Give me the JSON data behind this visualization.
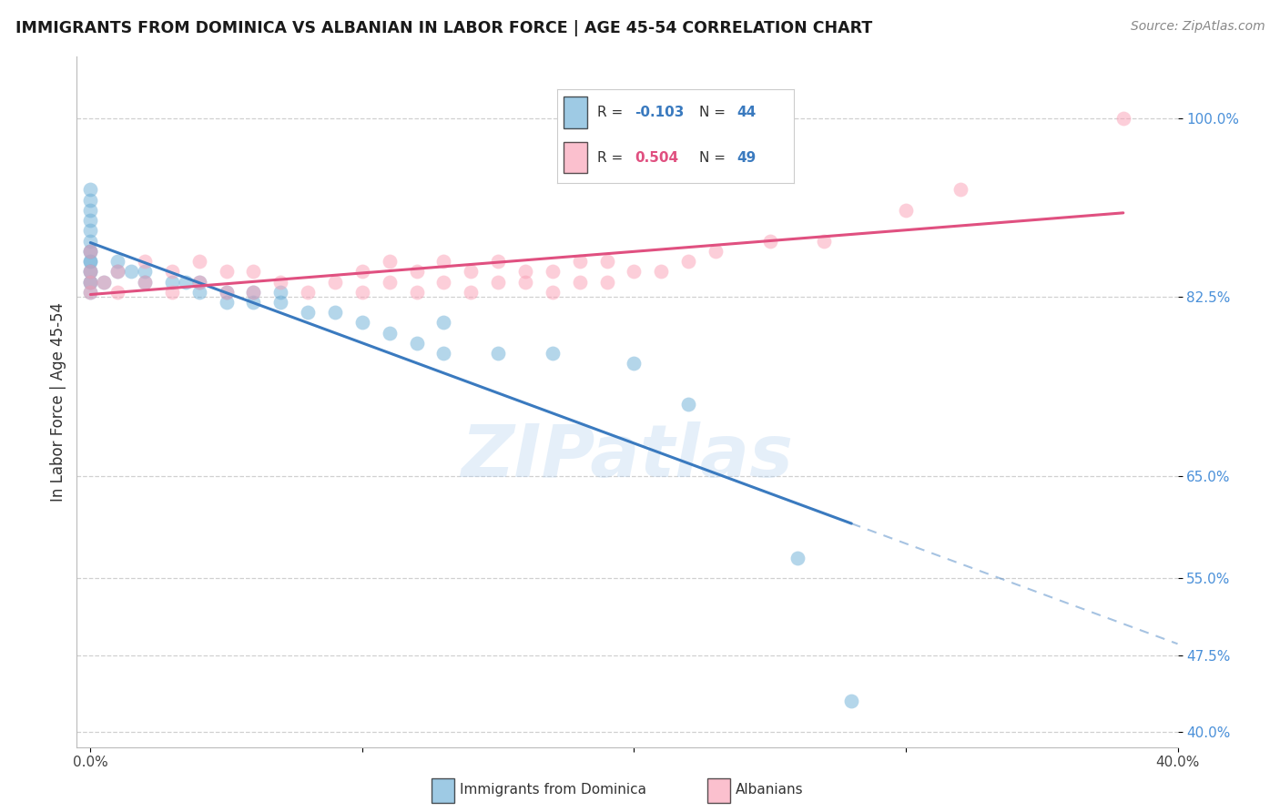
{
  "title": "IMMIGRANTS FROM DOMINICA VS ALBANIAN IN LABOR FORCE | AGE 45-54 CORRELATION CHART",
  "source": "Source: ZipAtlas.com",
  "ylabel": "In Labor Force | Age 45-54",
  "xlim": [
    -0.005,
    0.4
  ],
  "ylim": [
    0.385,
    1.06
  ],
  "ytick_vals": [
    0.4,
    0.475,
    0.55,
    0.65,
    0.825,
    1.0
  ],
  "ytick_labels": [
    "40.0%",
    "47.5%",
    "55.0%",
    "65.0%",
    "82.5%",
    "100.0%"
  ],
  "xtick_vals": [
    0.0,
    0.1,
    0.2,
    0.3,
    0.4
  ],
  "xtick_labels": [
    "0.0%",
    "",
    "",
    "",
    "40.0%"
  ],
  "dominica_color": "#6baed6",
  "albanian_color": "#fa9fb5",
  "dominica_line_color": "#3a7abf",
  "albanian_line_color": "#e05080",
  "dominica_R": -0.103,
  "dominica_N": 44,
  "albanian_R": 0.504,
  "albanian_N": 49,
  "dominica_x": [
    0.0,
    0.0,
    0.0,
    0.0,
    0.0,
    0.0,
    0.0,
    0.0,
    0.0,
    0.0,
    0.0,
    0.0,
    0.0,
    0.0,
    0.0,
    0.005,
    0.01,
    0.01,
    0.015,
    0.02,
    0.02,
    0.03,
    0.035,
    0.04,
    0.04,
    0.05,
    0.05,
    0.06,
    0.06,
    0.07,
    0.07,
    0.08,
    0.09,
    0.1,
    0.11,
    0.12,
    0.13,
    0.15,
    0.17,
    0.2,
    0.22,
    0.13,
    0.26,
    0.28
  ],
  "dominica_y": [
    0.83,
    0.84,
    0.85,
    0.86,
    0.87,
    0.88,
    0.89,
    0.9,
    0.91,
    0.92,
    0.93,
    0.84,
    0.85,
    0.86,
    0.87,
    0.84,
    0.85,
    0.86,
    0.85,
    0.84,
    0.85,
    0.84,
    0.84,
    0.83,
    0.84,
    0.83,
    0.82,
    0.82,
    0.83,
    0.82,
    0.83,
    0.81,
    0.81,
    0.8,
    0.79,
    0.78,
    0.77,
    0.77,
    0.77,
    0.76,
    0.72,
    0.8,
    0.57,
    0.43
  ],
  "albanian_x": [
    0.0,
    0.0,
    0.0,
    0.0,
    0.005,
    0.01,
    0.01,
    0.02,
    0.02,
    0.03,
    0.03,
    0.04,
    0.04,
    0.05,
    0.05,
    0.06,
    0.06,
    0.07,
    0.08,
    0.09,
    0.1,
    0.1,
    0.11,
    0.11,
    0.12,
    0.12,
    0.13,
    0.13,
    0.14,
    0.14,
    0.15,
    0.15,
    0.16,
    0.16,
    0.17,
    0.17,
    0.18,
    0.18,
    0.19,
    0.19,
    0.2,
    0.21,
    0.22,
    0.23,
    0.25,
    0.27,
    0.3,
    0.32,
    0.38
  ],
  "albanian_y": [
    0.83,
    0.84,
    0.85,
    0.87,
    0.84,
    0.83,
    0.85,
    0.84,
    0.86,
    0.83,
    0.85,
    0.84,
    0.86,
    0.83,
    0.85,
    0.83,
    0.85,
    0.84,
    0.83,
    0.84,
    0.83,
    0.85,
    0.84,
    0.86,
    0.83,
    0.85,
    0.84,
    0.86,
    0.83,
    0.85,
    0.84,
    0.86,
    0.84,
    0.85,
    0.83,
    0.85,
    0.84,
    0.86,
    0.84,
    0.86,
    0.85,
    0.85,
    0.86,
    0.87,
    0.88,
    0.88,
    0.91,
    0.93,
    1.0
  ],
  "watermark": "ZIPatlas",
  "background_color": "#ffffff",
  "grid_color": "#d0d0d0"
}
